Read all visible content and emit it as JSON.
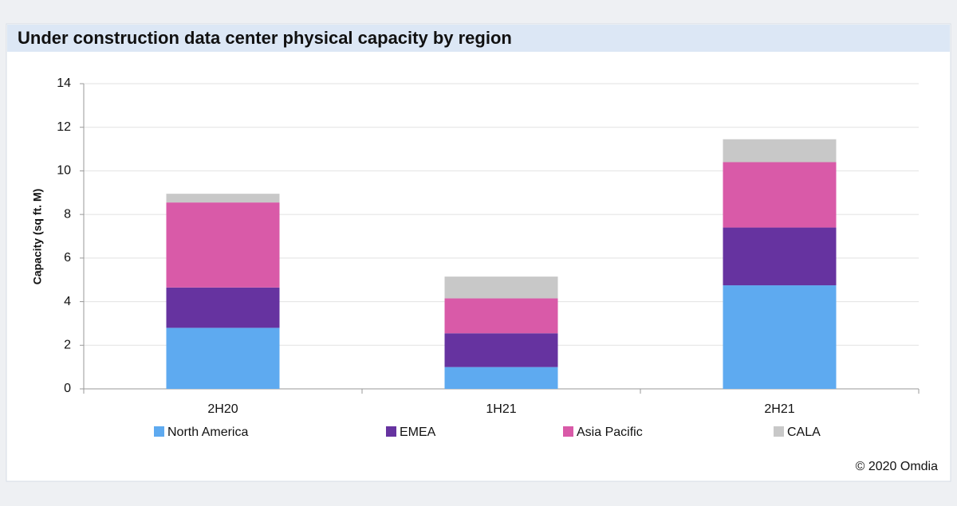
{
  "chart_data": {
    "type": "stacked_bar",
    "title": "Under construction data center physical capacity by region",
    "y_label": "Capacity (sq ft. M)",
    "source": "© 2020 Omdia",
    "categories": [
      "2H20",
      "1H21",
      "2H21"
    ],
    "series": [
      {
        "name": "North America",
        "color": "#5eaaf0",
        "values": [
          2.8,
          1.0,
          4.75
        ]
      },
      {
        "name": "EMEA",
        "color": "#6633a0",
        "values": [
          1.85,
          1.55,
          2.65
        ]
      },
      {
        "name": "Asia Pacific",
        "color": "#d95aa8",
        "values": [
          3.9,
          1.6,
          3.0
        ]
      },
      {
        "name": "CALA",
        "color": "#c8c8c8",
        "values": [
          0.4,
          1.0,
          1.05
        ]
      }
    ],
    "ylim": [
      0,
      14
    ],
    "yticks": [
      0,
      2,
      4,
      6,
      8,
      10,
      12,
      14
    ],
    "grid": true
  }
}
